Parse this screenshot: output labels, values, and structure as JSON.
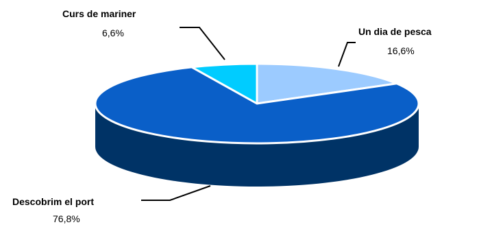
{
  "chart_data": {
    "type": "pie",
    "style": "3d",
    "title": "",
    "slices": [
      {
        "label": "Un dia de pesca",
        "value": 16.6,
        "value_label": "16,6%",
        "color": "#9ccbff",
        "side_color": "#5a7fa8"
      },
      {
        "label": "Descobrim el port",
        "value": 76.8,
        "value_label": "76,8%",
        "color": "#0a5fc8",
        "side_color": "#003366"
      },
      {
        "label": "Curs de mariner",
        "value": 6.6,
        "value_label": "6,6%",
        "color": "#00ccff",
        "side_color": "#0088aa"
      }
    ],
    "legend": "none"
  }
}
